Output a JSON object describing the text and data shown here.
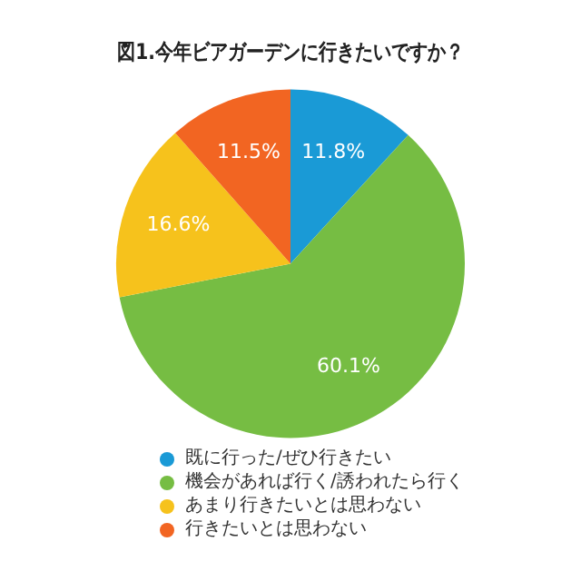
{
  "chart_data": {
    "type": "pie",
    "title": "図1.今年ビアガーデンに行きたいですか？",
    "categories": [
      "既に行った/ぜひ行きたい",
      "機会があれば行く/誘われたら行く",
      "あまり行きたいとは思わない",
      "行きたいとは思わない"
    ],
    "values": [
      11.8,
      60.1,
      16.6,
      11.5
    ],
    "value_labels": [
      "11.8%",
      "60.1%",
      "16.6%",
      "11.5%"
    ],
    "colors": [
      "#1a9ad6",
      "#76bd43",
      "#f6c21c",
      "#f26522"
    ],
    "legend": "bottom"
  }
}
